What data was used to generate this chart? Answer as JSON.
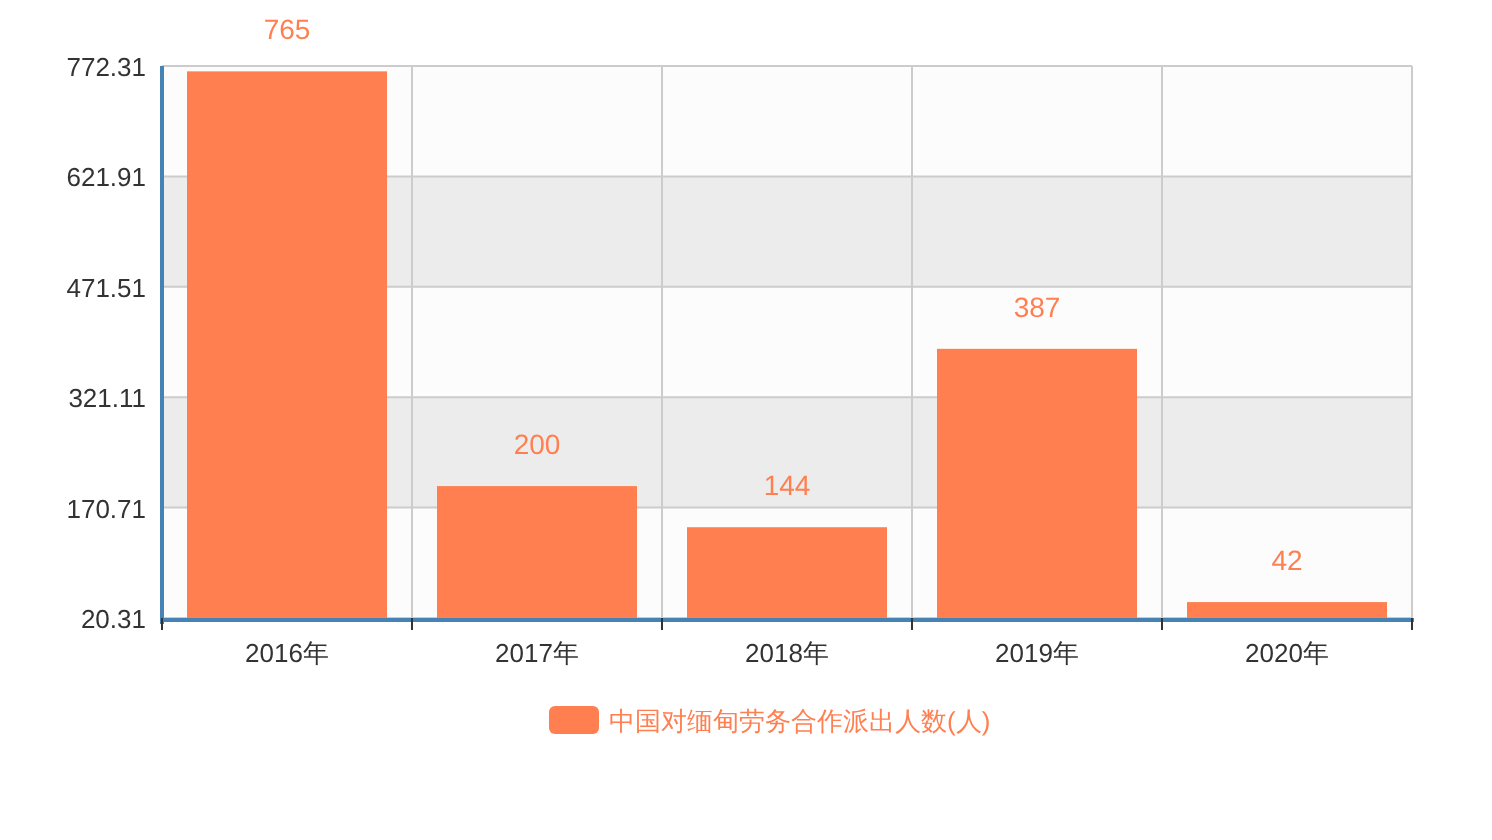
{
  "chart_data": {
    "type": "bar",
    "categories": [
      "2016年",
      "2017年",
      "2018年",
      "2019年",
      "2020年"
    ],
    "series": [
      {
        "name": "中国对缅甸劳务合作派出人数(人)",
        "color": "#ff7f50",
        "values": [
          765,
          200,
          144,
          387,
          42
        ]
      }
    ],
    "ylim": [
      20.31,
      772.31
    ],
    "yticks": [
      20.31,
      170.71,
      321.11,
      471.51,
      621.91,
      772.31
    ],
    "grid": true,
    "legend": "bottom",
    "data_labels": true
  }
}
